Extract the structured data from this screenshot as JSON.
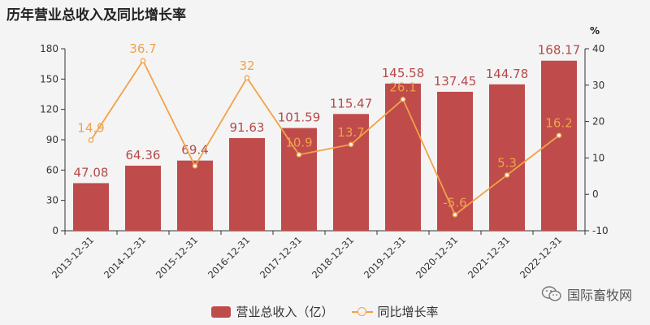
{
  "title": "历年营业总收入及同比增长率",
  "chart_data": {
    "type": "bar",
    "categories": [
      "2013-12-31",
      "2014-12-31",
      "2015-12-31",
      "2016-12-31",
      "2017-12-31",
      "2018-12-31",
      "2019-12-31",
      "2020-12-31",
      "2021-12-31",
      "2022-12-31"
    ],
    "series": [
      {
        "name": "营业总收入（亿）",
        "type": "bar",
        "axis": "left",
        "values": [
          47.08,
          64.36,
          69.4,
          91.63,
          101.59,
          115.47,
          145.58,
          137.45,
          144.78,
          168.17
        ],
        "labels": [
          "47.08",
          "64.36",
          "69.4",
          "91.63",
          "101.59",
          "115.47",
          "145.58",
          "137.45",
          "144.78",
          "168.17"
        ],
        "color": "#bf4b4b"
      },
      {
        "name": "同比增长率",
        "type": "line",
        "axis": "right",
        "values": [
          14.9,
          36.7,
          7.8,
          32,
          10.9,
          13.7,
          26.1,
          -5.6,
          5.3,
          16.2
        ],
        "labels": [
          "14.9",
          "36.7",
          "",
          "32",
          "10.9",
          "13.7",
          "26.1",
          "-5.6",
          "5.3",
          "16.2"
        ],
        "color": "#f0a24a"
      }
    ],
    "y_left": {
      "ylim": [
        0,
        180
      ],
      "ticks": [
        "0",
        "30",
        "60",
        "90",
        "120",
        "150",
        "180"
      ]
    },
    "y_right": {
      "ylim": [
        -10,
        40
      ],
      "ticks": [
        "-10",
        "0",
        "10",
        "20",
        "30",
        "40"
      ],
      "unit": "%"
    },
    "grid": false,
    "legend": "bottom-center"
  },
  "watermark": {
    "text": "国际畜牧网",
    "icon": "wechat-icon"
  }
}
